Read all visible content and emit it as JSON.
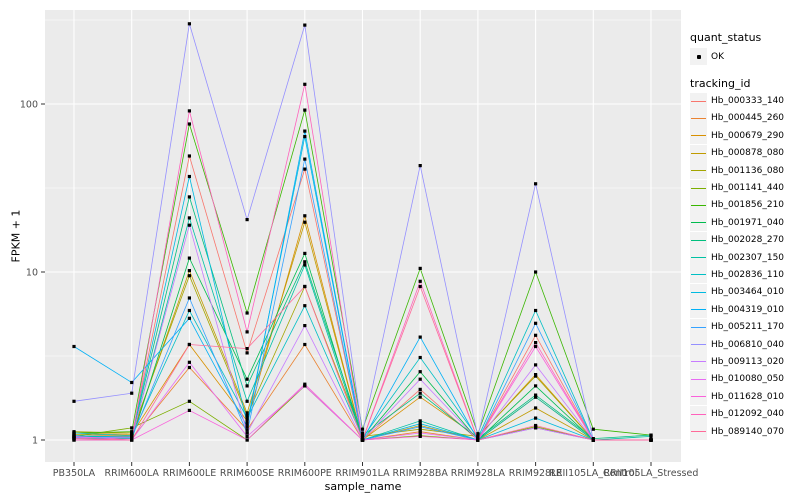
{
  "figure": {
    "background": "#FFFFFF",
    "panel_background": "#EBEBEB",
    "gridline_color": "#FFFFFF",
    "tick_color": "#333333",
    "tick_label_color": "#4D4D4D",
    "legend": {
      "key_background": "#F2F2F2",
      "quant_status": {
        "title": "quant_status",
        "items": [
          {
            "label": "OK",
            "marker": "black-point"
          }
        ]
      },
      "tracking_id": {
        "title": "tracking_id"
      }
    }
  },
  "chart_data": {
    "type": "line",
    "title": "",
    "xlabel": "sample_name",
    "ylabel": "FPKM + 1",
    "y_scale": "log10",
    "y_ticks": [
      1,
      10,
      100
    ],
    "y_minor_ticks": [
      3.1623,
      31.623,
      316.23
    ],
    "ylim": [
      0.93,
      363
    ],
    "grid": true,
    "legend_position": "right",
    "marker": "small-black-square",
    "categories": [
      "PB350LA",
      "RRIM600LA",
      "RRIM600LE",
      "RRIM600SE",
      "RRIM600PE",
      "RRIM901LA",
      "RRIM928BA",
      "RRIM928LA",
      "RRIM928LE",
      "RRII105LA_Control",
      "RRII105LA_Stressed"
    ],
    "series": [
      {
        "name": "Hb_000333_140",
        "color": "#F8766D",
        "values": [
          1.06,
          1.05,
          49,
          3.3,
          41,
          1.0,
          2.0,
          1.0,
          4.2,
          1.0,
          1.0
        ]
      },
      {
        "name": "Hb_000445_260",
        "color": "#EA8331",
        "values": [
          1.03,
          1.02,
          2.7,
          1.15,
          3.7,
          1.0,
          1.12,
          1.0,
          1.8,
          1.0,
          1.0
        ]
      },
      {
        "name": "Hb_000679_290",
        "color": "#D89000",
        "values": [
          1.1,
          1.08,
          3.7,
          1.3,
          21.6,
          1.0,
          1.8,
          1.04,
          2.45,
          1.0,
          1.0
        ]
      },
      {
        "name": "Hb_000878_080",
        "color": "#C09B00",
        "values": [
          1.08,
          1.06,
          10.2,
          1.45,
          19.8,
          1.0,
          1.22,
          1.0,
          1.55,
          1.0,
          1.0
        ]
      },
      {
        "name": "Hb_001136_080",
        "color": "#A3A500",
        "values": [
          1.12,
          1.1,
          9.5,
          1.4,
          8.2,
          1.05,
          1.16,
          1.05,
          2.4,
          1.0,
          1.0
        ]
      },
      {
        "name": "Hb_001141_440",
        "color": "#7CAE00",
        "values": [
          1.05,
          1.18,
          1.7,
          1.0,
          2.1,
          1.0,
          1.06,
          1.0,
          1.2,
          1.0,
          1.0
        ]
      },
      {
        "name": "Hb_001856_210",
        "color": "#39B600",
        "values": [
          1.1,
          1.12,
          76,
          5.7,
          92,
          1.16,
          10.5,
          1.09,
          10.0,
          1.16,
          1.07
        ]
      },
      {
        "name": "Hb_001971_040",
        "color": "#00BB4E",
        "values": [
          1.0,
          1.0,
          12.1,
          2.3,
          12.9,
          1.0,
          2.55,
          1.0,
          2.1,
          1.0,
          1.0
        ]
      },
      {
        "name": "Hb_002028_270",
        "color": "#00BF7D",
        "values": [
          1.05,
          1.04,
          28,
          2.1,
          11.5,
          1.06,
          1.9,
          1.02,
          1.85,
          1.02,
          1.07
        ]
      },
      {
        "name": "Hb_002307_150",
        "color": "#00C1A3",
        "values": [
          1.02,
          1.02,
          21,
          1.7,
          11.0,
          1.0,
          1.3,
          1.0,
          1.8,
          1.0,
          1.05
        ]
      },
      {
        "name": "Hb_002836_110",
        "color": "#00BFC4",
        "values": [
          1.1,
          1.06,
          5.9,
          1.35,
          6.3,
          1.03,
          3.1,
          1.03,
          5.9,
          1.0,
          1.0
        ]
      },
      {
        "name": "Hb_003464_010",
        "color": "#00BAE0",
        "values": [
          1.06,
          1.04,
          37,
          1.25,
          64,
          1.0,
          1.25,
          1.0,
          1.35,
          1.0,
          1.0
        ]
      },
      {
        "name": "Hb_004319_010",
        "color": "#00B0F6",
        "values": [
          3.6,
          2.2,
          5.3,
          1.2,
          69,
          1.0,
          4.1,
          1.0,
          1.18,
          1.0,
          1.0
        ]
      },
      {
        "name": "Hb_005211_170",
        "color": "#35A2FF",
        "values": [
          1.04,
          1.03,
          7.0,
          1.1,
          47,
          1.0,
          1.2,
          1.0,
          4.95,
          1.0,
          1.0
        ]
      },
      {
        "name": "Hb_006810_040",
        "color": "#9590FF",
        "values": [
          1.7,
          1.9,
          300,
          20.5,
          295,
          1.1,
          43,
          1.05,
          33.5,
          1.0,
          1.0
        ]
      },
      {
        "name": "Hb_009113_020",
        "color": "#C77CFF",
        "values": [
          1.03,
          1.03,
          19,
          1.1,
          4.8,
          1.0,
          2.3,
          1.0,
          2.8,
          1.0,
          1.0
        ]
      },
      {
        "name": "Hb_010080_050",
        "color": "#E76BF3",
        "values": [
          1.0,
          1.0,
          2.9,
          1.05,
          2.1,
          1.0,
          1.1,
          1.0,
          1.18,
          1.0,
          1.0
        ]
      },
      {
        "name": "Hb_011628_010",
        "color": "#FA62DB",
        "values": [
          1.05,
          1.0,
          1.5,
          1.0,
          2.15,
          1.0,
          1.05,
          1.0,
          3.6,
          1.0,
          1.0
        ]
      },
      {
        "name": "Hb_012092_040",
        "color": "#FF62BC",
        "values": [
          1.0,
          1.0,
          91,
          4.4,
          131,
          1.0,
          8.8,
          1.0,
          3.8,
          1.0,
          1.0
        ]
      },
      {
        "name": "Hb_089140_070",
        "color": "#FF6A98",
        "values": [
          1.02,
          1.0,
          3.7,
          3.5,
          8.2,
          1.0,
          8.2,
          1.0,
          1.22,
          1.0,
          1.0
        ]
      }
    ]
  }
}
